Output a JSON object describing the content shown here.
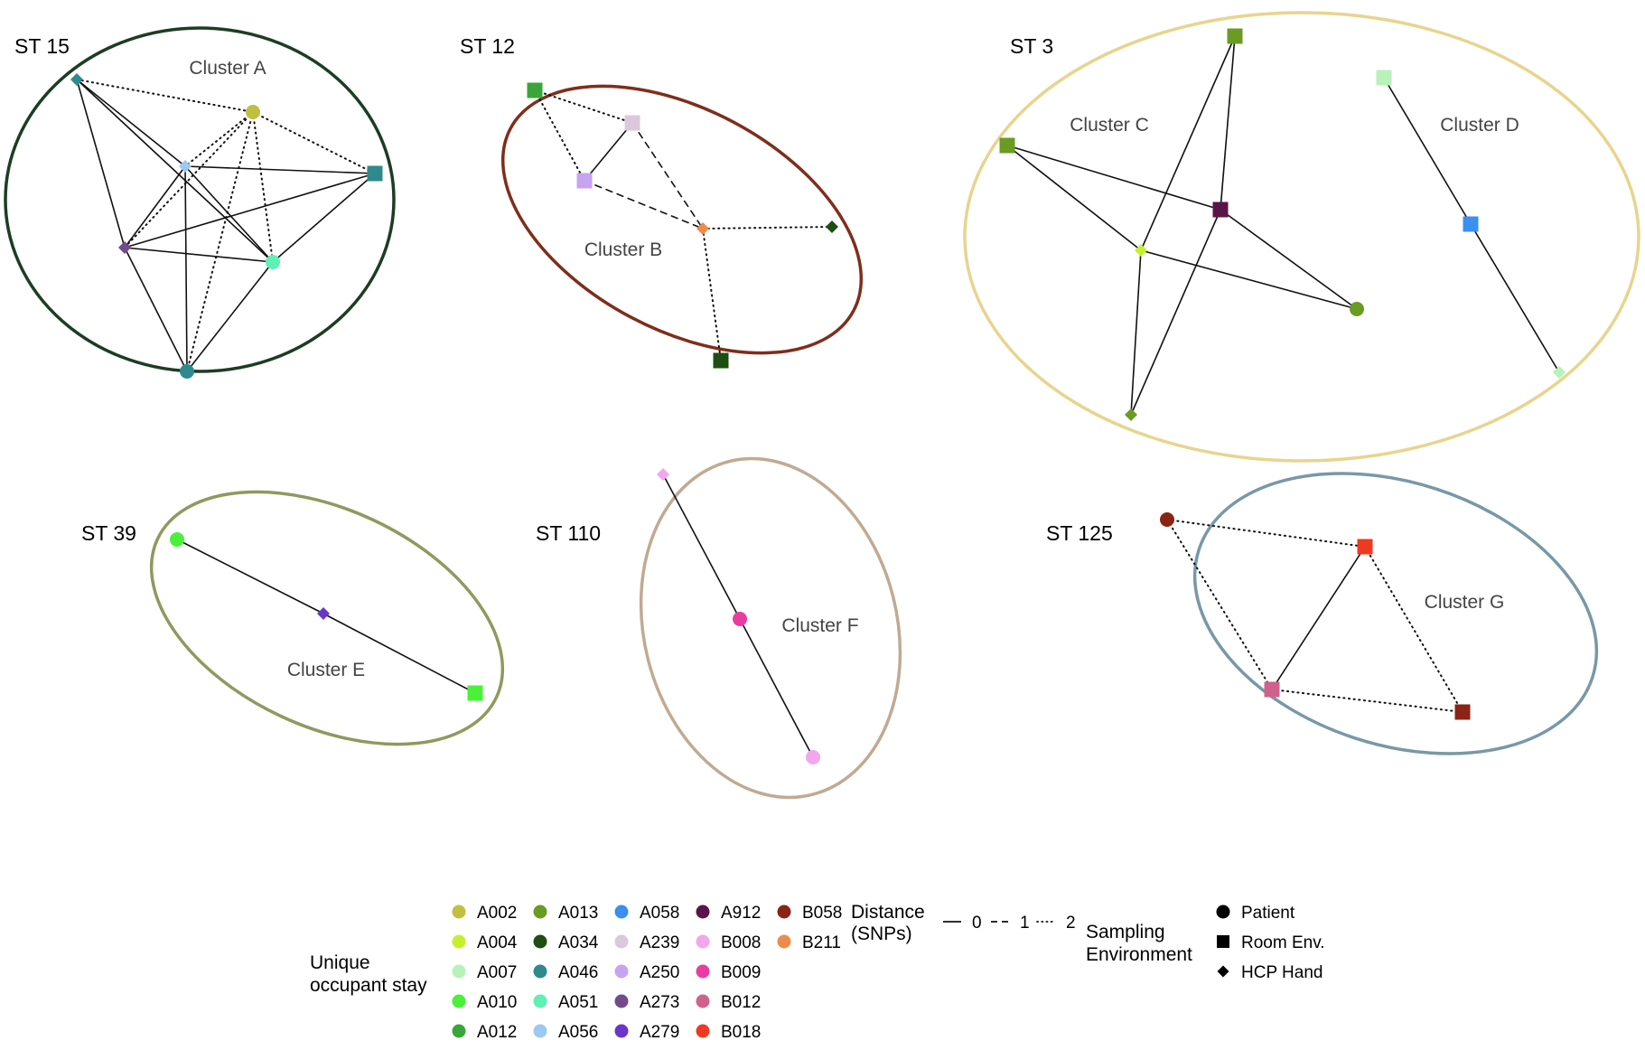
{
  "legend": {
    "occupant_title": [
      "Unique",
      "occupant stay"
    ],
    "occupants": [
      {
        "id": "A002",
        "color": "#bfc040"
      },
      {
        "id": "A004",
        "color": "#c6f02e"
      },
      {
        "id": "A007",
        "color": "#b7f2b8"
      },
      {
        "id": "A010",
        "color": "#4cf03a"
      },
      {
        "id": "A012",
        "color": "#3aa63a"
      },
      {
        "id": "A013",
        "color": "#6a9b22"
      },
      {
        "id": "A034",
        "color": "#1f4d12"
      },
      {
        "id": "A046",
        "color": "#2e8a8c"
      },
      {
        "id": "A051",
        "color": "#5ef0b4"
      },
      {
        "id": "A056",
        "color": "#9cc8f2"
      },
      {
        "id": "A058",
        "color": "#3a8ff0"
      },
      {
        "id": "A239",
        "color": "#dcc8dc"
      },
      {
        "id": "A250",
        "color": "#c7a3f0"
      },
      {
        "id": "A273",
        "color": "#744a8c"
      },
      {
        "id": "A279",
        "color": "#6a36c8"
      },
      {
        "id": "A912",
        "color": "#5c1448"
      },
      {
        "id": "B008",
        "color": "#f4a6ec"
      },
      {
        "id": "B009",
        "color": "#ea3ca0"
      },
      {
        "id": "B012",
        "color": "#d0608c"
      },
      {
        "id": "B018",
        "color": "#ee3a22"
      },
      {
        "id": "B058",
        "color": "#8a2414"
      },
      {
        "id": "B211",
        "color": "#ec8c4c"
      }
    ],
    "distance_title": [
      "Distance",
      "(SNPs)"
    ],
    "distance_items": [
      {
        "label": "0",
        "style": "solid"
      },
      {
        "label": "1",
        "style": "dashed"
      },
      {
        "label": "2",
        "style": "dotted"
      }
    ],
    "sampling_title": [
      "Sampling",
      "Environment"
    ],
    "sampling_items": [
      {
        "shape": "circle",
        "label": "Patient"
      },
      {
        "shape": "square",
        "label": "Room Env."
      },
      {
        "shape": "diamond",
        "label": "HCP Hand"
      }
    ]
  },
  "groups": [
    {
      "st": "ST 15",
      "ellipse_color": "#1c3d22",
      "clusters": [
        "Cluster A"
      ],
      "nodes": [
        {
          "id": "a1",
          "occupant": "A046",
          "shape": "diamond"
        },
        {
          "id": "a2",
          "occupant": "A002",
          "shape": "circle"
        },
        {
          "id": "a3",
          "occupant": "A056",
          "shape": "diamond"
        },
        {
          "id": "a4",
          "occupant": "A046",
          "shape": "square"
        },
        {
          "id": "a5",
          "occupant": "A273",
          "shape": "diamond"
        },
        {
          "id": "a6",
          "occupant": "A051",
          "shape": "circle"
        },
        {
          "id": "a7",
          "occupant": "A046",
          "shape": "circle"
        }
      ],
      "edges": [
        [
          "a1",
          "a3",
          0
        ],
        [
          "a1",
          "a5",
          0
        ],
        [
          "a1",
          "a6",
          0
        ],
        [
          "a1",
          "a2",
          2
        ],
        [
          "a3",
          "a4",
          0
        ],
        [
          "a3",
          "a5",
          0
        ],
        [
          "a3",
          "a6",
          0
        ],
        [
          "a3",
          "a7",
          0
        ],
        [
          "a5",
          "a4",
          0
        ],
        [
          "a5",
          "a6",
          0
        ],
        [
          "a5",
          "a7",
          0
        ],
        [
          "a4",
          "a6",
          0
        ],
        [
          "a6",
          "a7",
          0
        ],
        [
          "a2",
          "a3",
          2
        ],
        [
          "a2",
          "a4",
          2
        ],
        [
          "a2",
          "a5",
          2
        ],
        [
          "a2",
          "a6",
          2
        ],
        [
          "a2",
          "a7",
          2
        ]
      ]
    },
    {
      "st": "ST 12",
      "ellipse_color": "#7e2e1c",
      "clusters": [
        "Cluster B"
      ],
      "nodes": [
        {
          "id": "b1",
          "occupant": "A012",
          "shape": "square"
        },
        {
          "id": "b2",
          "occupant": "A239",
          "shape": "square"
        },
        {
          "id": "b3",
          "occupant": "A250",
          "shape": "square"
        },
        {
          "id": "b4",
          "occupant": "B211",
          "shape": "diamond"
        },
        {
          "id": "b5",
          "occupant": "A034",
          "shape": "diamond"
        },
        {
          "id": "b6",
          "occupant": "A034",
          "shape": "square"
        }
      ],
      "edges": [
        [
          "b1",
          "b2",
          2
        ],
        [
          "b1",
          "b3",
          2
        ],
        [
          "b3",
          "b2",
          0
        ],
        [
          "b3",
          "b4",
          1
        ],
        [
          "b2",
          "b4",
          1
        ],
        [
          "b4",
          "b5",
          2
        ],
        [
          "b4",
          "b6",
          2
        ]
      ]
    },
    {
      "st": "ST 3",
      "ellipse_color": "#e8d48e",
      "clusters": [
        "Cluster C",
        "Cluster D"
      ],
      "nodes": [
        {
          "id": "c1",
          "occupant": "A013",
          "shape": "square"
        },
        {
          "id": "c2",
          "occupant": "A013",
          "shape": "square"
        },
        {
          "id": "c3",
          "occupant": "A912",
          "shape": "square"
        },
        {
          "id": "c4",
          "occupant": "A004",
          "shape": "diamond"
        },
        {
          "id": "c5",
          "occupant": "A013",
          "shape": "circle"
        },
        {
          "id": "c6",
          "occupant": "A013",
          "shape": "diamond"
        },
        {
          "id": "d1",
          "occupant": "A007",
          "shape": "square"
        },
        {
          "id": "d2",
          "occupant": "A058",
          "shape": "square"
        },
        {
          "id": "d3",
          "occupant": "A007",
          "shape": "diamond"
        }
      ],
      "edges": [
        [
          "c1",
          "c3",
          0
        ],
        [
          "c1",
          "c4",
          0
        ],
        [
          "c2",
          "c3",
          0
        ],
        [
          "c2",
          "c4",
          0
        ],
        [
          "c3",
          "c5",
          0
        ],
        [
          "c3",
          "c6",
          0
        ],
        [
          "c4",
          "c5",
          0
        ],
        [
          "c4",
          "c6",
          0
        ],
        [
          "d1",
          "d2",
          0
        ],
        [
          "d2",
          "d3",
          0
        ]
      ]
    },
    {
      "st": "ST 39",
      "ellipse_color": "#8e9a5e",
      "clusters": [
        "Cluster E"
      ],
      "nodes": [
        {
          "id": "e1",
          "occupant": "A010",
          "shape": "circle"
        },
        {
          "id": "e2",
          "occupant": "A279",
          "shape": "diamond"
        },
        {
          "id": "e3",
          "occupant": "A010",
          "shape": "square"
        }
      ],
      "edges": [
        [
          "e1",
          "e2",
          0
        ],
        [
          "e2",
          "e3",
          0
        ]
      ]
    },
    {
      "st": "ST 110",
      "ellipse_color": "#c0aa92",
      "clusters": [
        "Cluster F"
      ],
      "nodes": [
        {
          "id": "f1",
          "occupant": "B008",
          "shape": "diamond"
        },
        {
          "id": "f2",
          "occupant": "B009",
          "shape": "circle"
        },
        {
          "id": "f3",
          "occupant": "B008",
          "shape": "circle"
        }
      ],
      "edges": [
        [
          "f1",
          "f2",
          0
        ],
        [
          "f2",
          "f3",
          0
        ]
      ]
    },
    {
      "st": "ST 125",
      "ellipse_color": "#7898a6",
      "clusters": [
        "Cluster G"
      ],
      "nodes": [
        {
          "id": "g1",
          "occupant": "B058",
          "shape": "circle"
        },
        {
          "id": "g2",
          "occupant": "B018",
          "shape": "square"
        },
        {
          "id": "g3",
          "occupant": "B012",
          "shape": "square"
        },
        {
          "id": "g4",
          "occupant": "B058",
          "shape": "square"
        }
      ],
      "edges": [
        [
          "g1",
          "g2",
          2
        ],
        [
          "g1",
          "g3",
          2
        ],
        [
          "g2",
          "g3",
          0
        ],
        [
          "g2",
          "g4",
          2
        ],
        [
          "g3",
          "g4",
          2
        ]
      ]
    }
  ]
}
